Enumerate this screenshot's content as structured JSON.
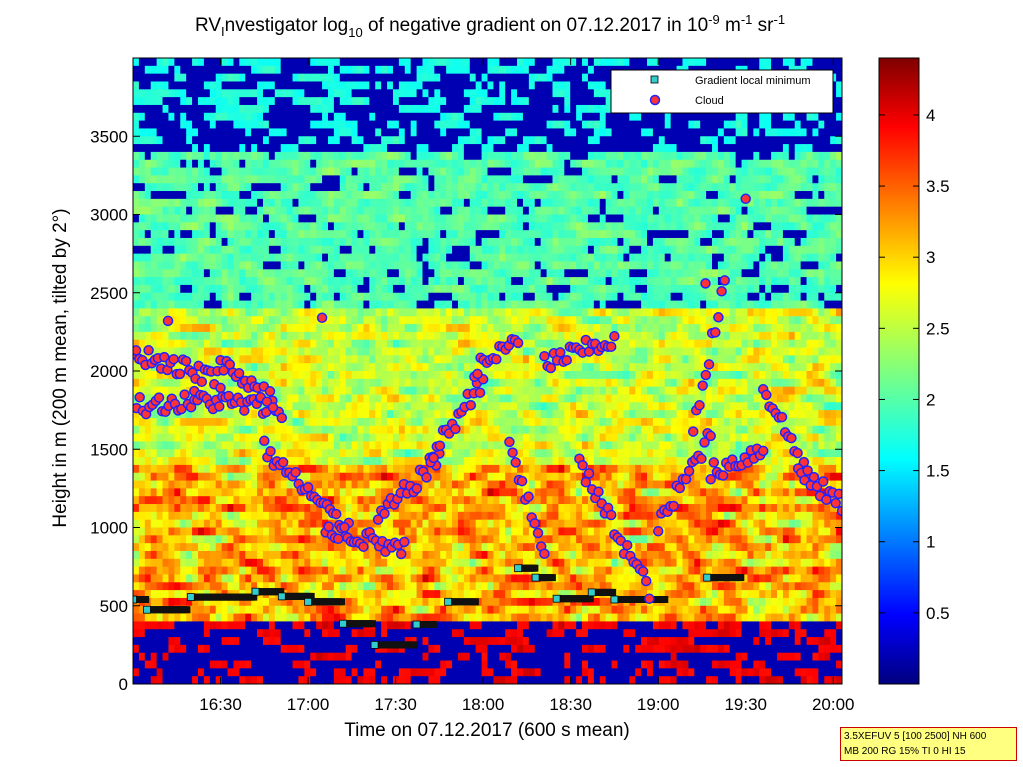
{
  "chart_data": {
    "type": "heatmap",
    "title_parts": {
      "prefix": "RV",
      "prefix_sub": "I",
      "mid1": "nvestigator log",
      "log_sub": "10",
      "mid2": " of negative gradient on 07.12.2017 in 10",
      "exp1": "-9",
      "mid3": " m",
      "exp2": "-1",
      "mid4": " sr",
      "exp3": "-1"
    },
    "xlabel": "Time on 07.12.2017 (600 s mean)",
    "ylabel": "Height in m (200 m mean, tilted by 2°)",
    "x_ticks": [
      "16:30",
      "17:00",
      "17:30",
      "18:00",
      "18:30",
      "19:00",
      "19:30",
      "20:00"
    ],
    "x_tick_hours": [
      16.5,
      17.0,
      17.5,
      18.0,
      18.5,
      19.0,
      19.5,
      20.0
    ],
    "xlim": [
      16.0,
      20.05
    ],
    "y_ticks": [
      0,
      500,
      1000,
      1500,
      2000,
      2500,
      3000,
      3500
    ],
    "ylim": [
      0,
      4000
    ],
    "colorbar": {
      "ticks": [
        0.5,
        1,
        1.5,
        2,
        2.5,
        3,
        3.5,
        4
      ],
      "tick_labels": [
        "0.5",
        "1",
        "1.5",
        "2",
        "2.5",
        "3",
        "3.5",
        "4"
      ],
      "range": [
        0,
        4.4
      ],
      "colormap": "jet"
    },
    "legend": {
      "position": "top-right",
      "entries": [
        {
          "label": "Gradient local minimum",
          "marker": "square",
          "color": "#33cccc"
        },
        {
          "label": "Cloud",
          "marker": "circle",
          "color": "#ff3333",
          "edge": "#2222ff"
        }
      ]
    },
    "gradient_min_segments": [
      {
        "t0": 16.0,
        "t1": 16.08,
        "h": 540
      },
      {
        "t0": 16.08,
        "t1": 16.32,
        "h": 475
      },
      {
        "t0": 16.33,
        "t1": 16.7,
        "h": 555
      },
      {
        "t0": 16.7,
        "t1": 16.85,
        "h": 590
      },
      {
        "t0": 16.85,
        "t1": 17.02,
        "h": 560
      },
      {
        "t0": 17.0,
        "t1": 17.2,
        "h": 525
      },
      {
        "t0": 17.2,
        "t1": 17.38,
        "h": 385
      },
      {
        "t0": 17.38,
        "t1": 17.62,
        "h": 250
      },
      {
        "t0": 17.62,
        "t1": 17.72,
        "h": 380
      },
      {
        "t0": 17.8,
        "t1": 17.96,
        "h": 525
      },
      {
        "t0": 18.2,
        "t1": 18.3,
        "h": 740
      },
      {
        "t0": 18.3,
        "t1": 18.4,
        "h": 680
      },
      {
        "t0": 18.42,
        "t1": 18.62,
        "h": 545
      },
      {
        "t0": 18.62,
        "t1": 18.75,
        "h": 585
      },
      {
        "t0": 18.75,
        "t1": 19.05,
        "h": 540
      },
      {
        "t0": 19.28,
        "t1": 19.48,
        "h": 680
      }
    ],
    "cloud_tracks": [
      {
        "t0": 16.0,
        "t1": 16.5,
        "h0": 2120,
        "h1": 1950
      },
      {
        "t0": 16.02,
        "t1": 16.35,
        "h0": 1780,
        "h1": 1800
      },
      {
        "t0": 16.35,
        "t1": 16.85,
        "h0": 1820,
        "h1": 1760
      },
      {
        "t0": 16.5,
        "t1": 16.8,
        "h0": 2050,
        "h1": 1820
      },
      {
        "t0": 16.75,
        "t1": 17.25,
        "h0": 1500,
        "h1": 950
      },
      {
        "t0": 17.1,
        "t1": 17.55,
        "h0": 1000,
        "h1": 850
      },
      {
        "t0": 17.4,
        "t1": 17.75,
        "h0": 1050,
        "h1": 1450
      },
      {
        "t0": 17.7,
        "t1": 18.0,
        "h0": 1450,
        "h1": 1950
      },
      {
        "t0": 17.95,
        "t1": 18.2,
        "h0": 2000,
        "h1": 2200
      },
      {
        "t0": 18.15,
        "t1": 18.35,
        "h0": 1550,
        "h1": 800
      },
      {
        "t0": 18.35,
        "t1": 18.75,
        "h0": 2050,
        "h1": 2200
      },
      {
        "t0": 18.55,
        "t1": 18.95,
        "h0": 1400,
        "h1": 600
      },
      {
        "t0": 19.0,
        "t1": 19.3,
        "h0": 1000,
        "h1": 1600
      },
      {
        "t0": 19.2,
        "t1": 19.38,
        "h0": 1650,
        "h1": 2550
      },
      {
        "t0": 19.3,
        "t1": 19.6,
        "h0": 1350,
        "h1": 1500
      },
      {
        "t0": 19.6,
        "t1": 19.85,
        "h0": 1900,
        "h1": 1350
      },
      {
        "t0": 19.8,
        "t1": 20.05,
        "h0": 1350,
        "h1": 1150
      }
    ],
    "cloud_points": [
      {
        "t": 19.5,
        "h": 3100
      },
      {
        "t": 19.27,
        "h": 2560
      },
      {
        "t": 17.08,
        "h": 2340
      },
      {
        "t": 16.2,
        "h": 2320
      }
    ]
  },
  "info_box": {
    "line1": "3.5XEFUV 5 [100 2500] NH 600",
    "line2": "MB 200 RG 15% TI 0 HI 15"
  }
}
